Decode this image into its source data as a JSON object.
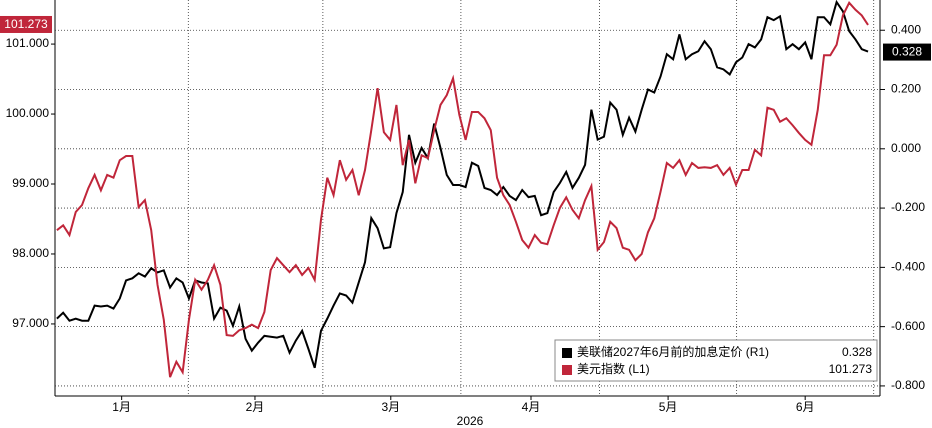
{
  "chart_data": {
    "type": "line",
    "xlabel": "2026",
    "xlim": [
      -0.3,
      130.9
    ],
    "xticks": [
      {
        "value": 10.3,
        "label": "1月"
      },
      {
        "value": 31.5,
        "label": "2月"
      },
      {
        "value": 53.1,
        "label": "3月"
      },
      {
        "value": 75.4,
        "label": "4月"
      },
      {
        "value": 97.2,
        "label": "5月"
      },
      {
        "value": 119.0,
        "label": "6月"
      }
    ],
    "ylim": [
      95.97,
      101.63
    ],
    "yticks": [
      {
        "value": 97,
        "label": "97.000"
      },
      {
        "value": 98,
        "label": "98.000"
      },
      {
        "value": 99,
        "label": "99.000"
      },
      {
        "value": 100,
        "label": "100.000"
      },
      {
        "value": 101,
        "label": "101.000"
      }
    ],
    "y2lim": [
      -0.834,
      0.502
    ],
    "y2ticks": [
      {
        "value": -0.8,
        "label": "-0.800"
      },
      {
        "value": -0.6,
        "label": "-0.600"
      },
      {
        "value": -0.4,
        "label": "-0.400"
      },
      {
        "value": -0.2,
        "label": "-0.200"
      },
      {
        "value": 0,
        "label": "0.000"
      },
      {
        "value": 0.2,
        "label": "0.200"
      },
      {
        "value": 0.4,
        "label": "0.400"
      }
    ],
    "grid": true,
    "series": [
      {
        "name": "美联储2027年6月前的加息定价 (R1)",
        "color": "#000000",
        "axis": "y2",
        "values": [
          -0.573,
          -0.553,
          -0.58,
          -0.573,
          -0.58,
          -0.58,
          -0.529,
          -0.532,
          -0.529,
          -0.539,
          -0.505,
          -0.444,
          -0.437,
          -0.42,
          -0.431,
          -0.403,
          -0.417,
          -0.41,
          -0.468,
          -0.437,
          -0.451,
          -0.505,
          -0.444,
          -0.451,
          -0.454,
          -0.573,
          -0.536,
          -0.546,
          -0.597,
          -0.532,
          -0.641,
          -0.681,
          -0.654,
          -0.631,
          -0.634,
          -0.637,
          -0.631,
          -0.688,
          -0.647,
          -0.614,
          -0.675,
          -0.739,
          -0.614,
          -0.573,
          -0.529,
          -0.488,
          -0.495,
          -0.519,
          -0.451,
          -0.383,
          -0.234,
          -0.268,
          -0.336,
          -0.332,
          -0.217,
          -0.146,
          0.047,
          -0.047,
          0.003,
          -0.031,
          0.085,
          0.003,
          -0.088,
          -0.122,
          -0.122,
          -0.129,
          -0.047,
          -0.058,
          -0.132,
          -0.139,
          -0.156,
          -0.129,
          -0.159,
          -0.173,
          -0.139,
          -0.163,
          -0.159,
          -0.224,
          -0.217,
          -0.146,
          -0.115,
          -0.078,
          -0.132,
          -0.098,
          -0.054,
          0.132,
          0.031,
          0.041,
          0.156,
          0.132,
          0.047,
          0.105,
          0.058,
          0.132,
          0.2,
          0.19,
          0.244,
          0.319,
          0.302,
          0.386,
          0.302,
          0.319,
          0.329,
          0.363,
          0.336,
          0.275,
          0.268,
          0.251,
          0.292,
          0.308,
          0.353,
          0.342,
          0.369,
          0.444,
          0.434,
          0.447,
          0.336,
          0.353,
          0.336,
          0.359,
          0.302,
          0.444,
          0.444,
          0.42,
          0.495,
          0.464,
          0.397,
          0.369,
          0.336,
          0.328
        ]
      },
      {
        "name": "美元指数 (L1)",
        "color": "#c0263a",
        "axis": "y",
        "values": [
          98.34,
          98.41,
          98.27,
          98.6,
          98.7,
          98.94,
          99.13,
          98.91,
          99.13,
          99.09,
          99.34,
          99.4,
          99.4,
          98.67,
          98.77,
          98.34,
          97.56,
          97.06,
          96.24,
          96.46,
          96.31,
          97.06,
          97.63,
          97.49,
          97.63,
          97.84,
          97.56,
          96.84,
          96.83,
          96.91,
          96.94,
          96.99,
          96.94,
          97.17,
          97.77,
          97.94,
          97.84,
          97.74,
          97.84,
          97.7,
          97.8,
          97.63,
          98.49,
          99.09,
          98.84,
          99.34,
          99.06,
          99.2,
          98.84,
          99.2,
          99.77,
          100.37,
          99.74,
          99.63,
          100.13,
          99.27,
          99.63,
          99.01,
          99.41,
          99.37,
          99.77,
          100.13,
          100.27,
          100.51,
          99.99,
          99.63,
          100.03,
          100.03,
          99.94,
          99.77,
          99.09,
          98.84,
          98.7,
          98.46,
          98.2,
          98.09,
          98.27,
          98.16,
          98.14,
          98.41,
          98.66,
          98.81,
          98.63,
          98.51,
          98.77,
          98.97,
          98.06,
          98.17,
          98.46,
          98.37,
          98.09,
          98.06,
          97.91,
          98.0,
          98.31,
          98.51,
          98.89,
          99.3,
          99.23,
          99.34,
          99.13,
          99.3,
          99.23,
          99.24,
          99.23,
          99.27,
          99.13,
          99.23,
          98.99,
          99.2,
          99.2,
          99.49,
          99.41,
          100.09,
          100.06,
          99.89,
          99.94,
          99.84,
          99.73,
          99.63,
          99.56,
          100.06,
          100.84,
          100.84,
          100.99,
          101.41,
          101.59,
          101.49,
          101.41,
          101.273
        ]
      }
    ]
  }
}
